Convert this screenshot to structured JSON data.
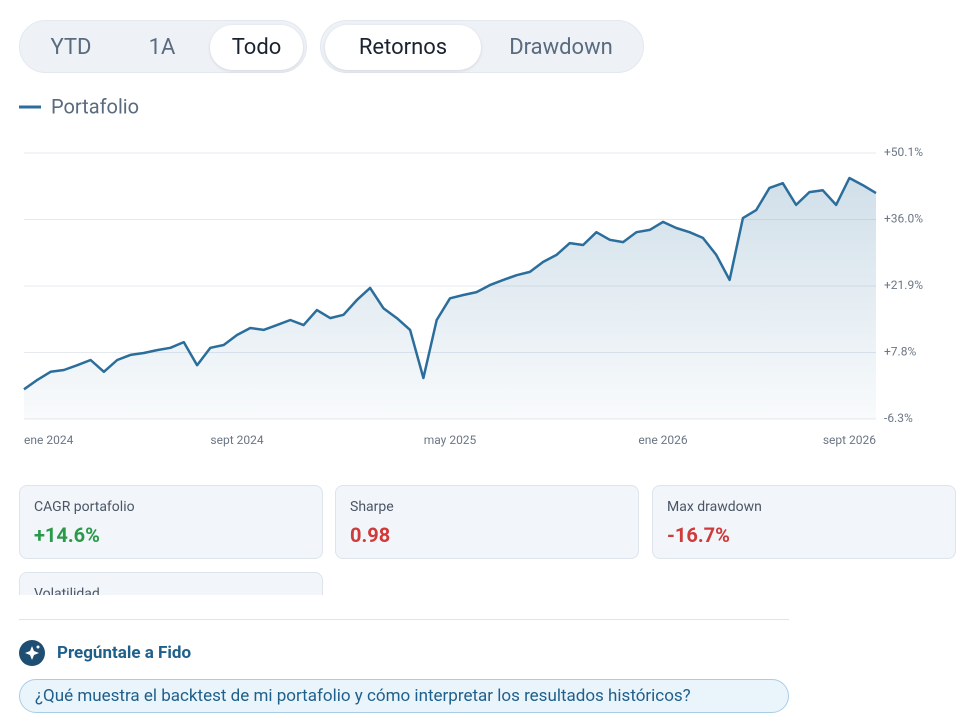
{
  "tabs": {
    "range": [
      "YTD",
      "1A",
      "Todo"
    ],
    "view": [
      "Retornos",
      "Drawdown"
    ]
  },
  "chart_data": {
    "type": "line",
    "categories": [
      "ene 2024",
      null,
      null,
      null,
      null,
      null,
      null,
      null,
      null,
      null,
      null,
      null,
      null,
      null,
      null,
      null,
      "sept 2024",
      null,
      null,
      null,
      null,
      null,
      null,
      null,
      null,
      null,
      null,
      null,
      null,
      null,
      null,
      null,
      "may 2025",
      null,
      null,
      null,
      null,
      null,
      null,
      null,
      null,
      null,
      null,
      null,
      null,
      null,
      null,
      null,
      "ene 2026",
      null,
      null,
      null,
      null,
      null,
      null,
      null,
      null,
      null,
      null,
      null,
      null,
      null,
      null,
      null,
      "sept 2026"
    ],
    "series": [
      {
        "name": "Portafolio",
        "color": "#2b6e9b",
        "values": [
          0.0,
          2.0,
          3.7,
          4.1,
          5.1,
          6.2,
          3.7,
          6.2,
          7.3,
          7.7,
          8.3,
          8.8,
          10.0,
          5.1,
          8.8,
          9.4,
          11.5,
          13.0,
          12.6,
          13.6,
          14.7,
          13.6,
          16.8,
          15.1,
          15.8,
          18.9,
          21.5,
          17.2,
          15.1,
          12.6,
          2.4,
          14.7,
          19.3,
          20.0,
          20.6,
          22.1,
          23.2,
          24.2,
          24.9,
          27.0,
          28.5,
          31.0,
          30.6,
          33.3,
          31.7,
          31.2,
          33.3,
          33.8,
          35.5,
          34.2,
          33.3,
          32.1,
          28.5,
          23.2,
          36.3,
          38.0,
          42.7,
          43.7,
          39.1,
          41.8,
          42.2,
          39.1,
          44.8,
          43.3,
          41.6
        ]
      }
    ],
    "ylim": [
      -6.3,
      50.1
    ],
    "yticks": [
      {
        "value": -6.3,
        "label": "-6.3%"
      },
      {
        "value": 7.8,
        "label": "+7.8%"
      },
      {
        "value": 21.9,
        "label": "+21.9%"
      },
      {
        "value": 36.0,
        "label": "+36.0%"
      },
      {
        "value": 50.1,
        "label": "+50.1%"
      }
    ],
    "grid": true,
    "area": true
  },
  "stats": [
    {
      "label": "CAGR portafolio",
      "value": "+14.6%",
      "tone": "positive"
    },
    {
      "label": "Sharpe",
      "value": "0.98",
      "tone": "negative"
    },
    {
      "label": "Max drawdown",
      "value": "-16.7%",
      "tone": "negative"
    },
    {
      "label": "Volatilidad"
    }
  ],
  "assistant": {
    "title": "Pregúntale a Fido",
    "question": "¿Qué muestra el backtest de mi portafolio y cómo interpretar los resultados históricos?"
  }
}
